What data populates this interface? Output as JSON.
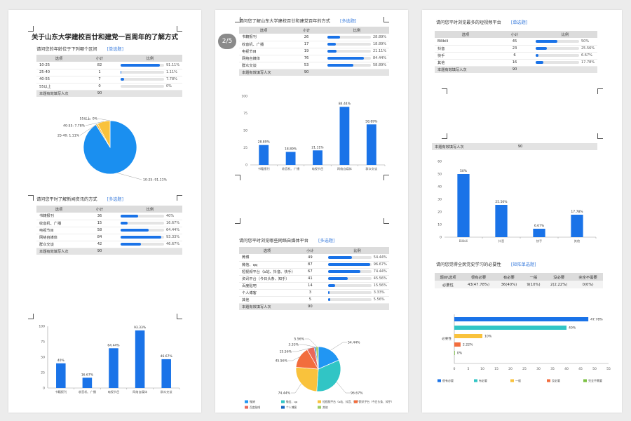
{
  "pager": "2/5",
  "colors": {
    "bar": "#1a73e8",
    "pie": [
      "#2196f3",
      "#31c5c5",
      "#f9c23c",
      "#f26d3d",
      "#5db9f5",
      "#4caf50",
      "#9e9e9e",
      "#7e57c2",
      "#26a69a"
    ]
  },
  "doc_title": "关于山东大学建校百廿和建党一百周年的了解方式",
  "total_label": "本题有效填写人次",
  "table_header": {
    "option": "选项",
    "count": "小计",
    "ratio": "比例"
  },
  "survey": [
    {
      "question": "请问您的年龄位于下列哪个区间",
      "type": "[单选题]",
      "total": 90,
      "rows": [
        {
          "label": "10-25",
          "count": 82,
          "pct": "91.11%"
        },
        {
          "label": "25-40",
          "count": 1,
          "pct": "1.11%"
        },
        {
          "label": "40-55",
          "count": 7,
          "pct": "7.78%"
        },
        {
          "label": "55以上",
          "count": 0,
          "pct": "0%"
        }
      ]
    },
    {
      "question": "请问您平时了解新闻资讯的方式",
      "type": "[多选题]",
      "total": 90,
      "rows": [
        {
          "label": "书籍报刊",
          "count": 36,
          "pct": "40%"
        },
        {
          "label": "收音机、广播",
          "count": 15,
          "pct": "16.67%"
        },
        {
          "label": "电视节目",
          "count": 58,
          "pct": "64.44%"
        },
        {
          "label": "网络自媒体",
          "count": 84,
          "pct": "93.33%"
        },
        {
          "label": "群众交谈",
          "count": 42,
          "pct": "46.67%"
        }
      ]
    },
    {
      "question": "请问您了解山东大学建校百廿和建党百年的方式",
      "type": "[多选题]",
      "total": 90,
      "rows": [
        {
          "label": "书籍报刊",
          "count": 26,
          "pct": "28.89%"
        },
        {
          "label": "收音机、广播",
          "count": 17,
          "pct": "18.89%"
        },
        {
          "label": "电视节目",
          "count": 19,
          "pct": "21.11%"
        },
        {
          "label": "网络自媒体",
          "count": 76,
          "pct": "84.44%"
        },
        {
          "label": "群众交谈",
          "count": 53,
          "pct": "58.89%"
        }
      ]
    },
    {
      "question": "请问您平时浏览哪些网络自媒体平台",
      "type": "[多选题]",
      "total": 90,
      "rows": [
        {
          "label": "微博",
          "count": 49,
          "pct": "54.44%"
        },
        {
          "label": "微信、qq",
          "count": 87,
          "pct": "96.67%"
        },
        {
          "label": "短视频平台（b站、抖音、快手）",
          "count": 67,
          "pct": "74.44%"
        },
        {
          "label": "资讯平台（今日头条、知乎）",
          "count": 41,
          "pct": "45.56%"
        },
        {
          "label": "百度贴吧",
          "count": 14,
          "pct": "15.56%"
        },
        {
          "label": "个人博客",
          "count": 3,
          "pct": "3.33%"
        },
        {
          "label": "其他",
          "count": 5,
          "pct": "5.56%"
        }
      ]
    },
    {
      "question": "请问您平时浏览最多的短视频平台",
      "type": "[单选题]",
      "total": 90,
      "rows": [
        {
          "label": "Bilibili",
          "count": 45,
          "pct": "50%"
        },
        {
          "label": "抖音",
          "count": 23,
          "pct": "25.56%"
        },
        {
          "label": "快手",
          "count": 6,
          "pct": "6.67%"
        },
        {
          "label": "其他",
          "count": 16,
          "pct": "17.78%"
        }
      ]
    }
  ],
  "matrix": {
    "question": "请问您觉得全民党史学习的必要性",
    "type": "[矩阵单选题]",
    "header": [
      "题目\\选项",
      "很有必要",
      "有必要",
      "一般",
      "没必要",
      "完全不需要"
    ],
    "row": [
      "必要性",
      "43(47.78%)",
      "36(40%)",
      "9(10%)",
      "2(2.22%)",
      "0(0%)"
    ]
  },
  "chart_data": [
    {
      "type": "pie",
      "categories": [
        "10-25",
        "25-40",
        "40-55",
        "55以上"
      ],
      "values": [
        91.11,
        1.11,
        7.78,
        0
      ],
      "labels": [
        "10-25: 91.11%",
        "25-40: 1.11%",
        "40-55: 7.78%",
        "55以上: 0%"
      ]
    },
    {
      "type": "bar",
      "categories": [
        "书籍报刊",
        "收音机、广播",
        "电视节目",
        "网络自媒体",
        "群众交谈"
      ],
      "values": [
        40,
        16.67,
        64.44,
        93.33,
        46.67
      ],
      "labels": [
        "40%",
        "16.67%",
        "64.44%",
        "93.33%",
        "46.67%"
      ],
      "ylim": [
        0,
        100
      ],
      "yticks": [
        0,
        25,
        50,
        75,
        100
      ]
    },
    {
      "type": "bar",
      "categories": [
        "书籍报刊",
        "收音机、广播",
        "电视节目",
        "网络自媒体",
        "群众交谈"
      ],
      "values": [
        28.89,
        18.89,
        21.11,
        84.44,
        58.89
      ],
      "labels": [
        "28.89%",
        "18.89%",
        "21.11%",
        "84.44%",
        "58.89%"
      ],
      "ylim": [
        0,
        100
      ],
      "yticks": [
        0,
        25,
        50,
        75,
        100
      ]
    },
    {
      "type": "pie",
      "categories": [
        "微博",
        "微信、qq",
        "短视频平台（b站、抖音、快手）",
        "资讯平台（今日头条、知乎）",
        "百度贴吧",
        "个人博客",
        "其他"
      ],
      "values": [
        54.44,
        96.67,
        74.44,
        45.56,
        15.56,
        3.33,
        5.56
      ],
      "labels": [
        "54.44%",
        "96.67%",
        "74.44%",
        "45.56%",
        "15.56%",
        "3.33%",
        "5.56%"
      ],
      "legend": "bottom"
    },
    {
      "type": "bar",
      "categories": [
        "Bilibili",
        "抖音",
        "快手",
        "其他"
      ],
      "values": [
        50,
        25.56,
        6.67,
        17.78
      ],
      "labels": [
        "50%",
        "25.56%",
        "6.67%",
        "17.78%"
      ],
      "ylim": [
        0,
        60
      ],
      "yticks": [
        0,
        10,
        20,
        30,
        40,
        50,
        60
      ]
    },
    {
      "type": "bar",
      "orientation": "horizontal",
      "category": "必要性",
      "series": [
        {
          "name": "很有必要",
          "value": 47.78,
          "label": "47.78%"
        },
        {
          "name": "有必要",
          "value": 40,
          "label": "40%"
        },
        {
          "name": "一般",
          "value": 10,
          "label": "10%"
        },
        {
          "name": "没必要",
          "value": 2.22,
          "label": "2.22%"
        },
        {
          "name": "完全不需要",
          "value": 0,
          "label": "0%"
        }
      ],
      "xlim": [
        0,
        55
      ],
      "xticks": [
        0,
        5,
        10,
        15,
        20,
        25,
        30,
        35,
        40,
        45,
        50,
        55
      ],
      "legend": "bottom"
    }
  ]
}
